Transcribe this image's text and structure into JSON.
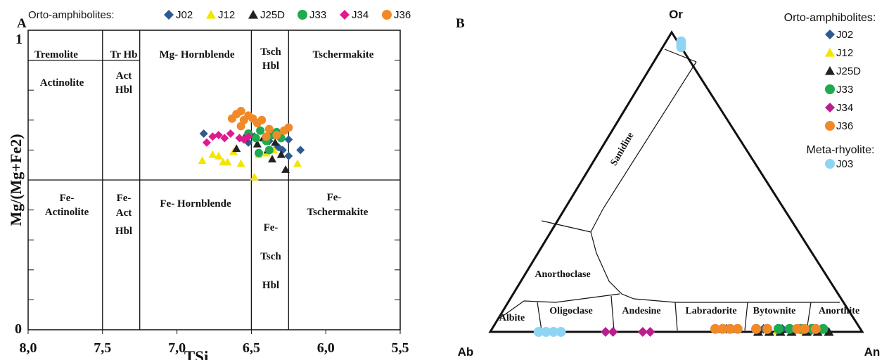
{
  "chart_data": [
    {
      "panel_label": "A",
      "type": "scatter",
      "legend_title": "Orto-amphibolites:",
      "legend_placement": "top",
      "xlabel": "TSi",
      "ylabel": "Mg/(Mg+Fe2)",
      "xlim": [
        8.0,
        5.5
      ],
      "ylim": [
        0,
        1
      ],
      "x_ticks": [
        "8,0",
        "7,5",
        "7,0",
        "6,5",
        "6,0",
        "5,5"
      ],
      "y_ticks": [
        "0",
        "1"
      ],
      "fields": [
        "Tremolite",
        "Tr Hb",
        "Actinolite",
        "Act",
        "Hbl",
        "Mg- Hornblende",
        "Tsch",
        "Hbl",
        "Tschermakite",
        "Fe-",
        "Actinolite",
        "Fe-",
        "Act",
        "Hbl",
        "Fe- Hornblende",
        "Fe-",
        "Tsch",
        "Hbl",
        "Fe-",
        "Tschermakite"
      ],
      "series": [
        {
          "name": "J02",
          "color": "#2f5a8f",
          "marker": "diamond",
          "points": [
            [
              6.82,
              0.655
            ],
            [
              6.52,
              0.625
            ],
            [
              6.48,
              0.645
            ],
            [
              6.38,
              0.63
            ],
            [
              6.32,
              0.61
            ],
            [
              6.29,
              0.6
            ],
            [
              6.25,
              0.58
            ],
            [
              6.25,
              0.635
            ],
            [
              6.17,
              0.6
            ]
          ]
        },
        {
          "name": "J12",
          "color": "#f2e600",
          "marker": "triangle",
          "points": [
            [
              6.83,
              0.565
            ],
            [
              6.76,
              0.585
            ],
            [
              6.72,
              0.58
            ],
            [
              6.69,
              0.56
            ],
            [
              6.66,
              0.56
            ],
            [
              6.62,
              0.595
            ],
            [
              6.57,
              0.555
            ],
            [
              6.48,
              0.51
            ],
            [
              6.45,
              0.585
            ],
            [
              6.4,
              0.59
            ],
            [
              6.35,
              0.6
            ],
            [
              6.19,
              0.555
            ]
          ]
        },
        {
          "name": "J25D",
          "color": "#222222",
          "marker": "triangle",
          "points": [
            [
              6.6,
              0.605
            ],
            [
              6.55,
              0.64
            ],
            [
              6.5,
              0.65
            ],
            [
              6.46,
              0.62
            ],
            [
              6.42,
              0.64
            ],
            [
              6.39,
              0.6
            ],
            [
              6.36,
              0.57
            ],
            [
              6.34,
              0.625
            ],
            [
              6.3,
              0.585
            ],
            [
              6.27,
              0.535
            ]
          ]
        },
        {
          "name": "J33",
          "color": "#1faa50",
          "marker": "circle",
          "points": [
            [
              6.52,
              0.655
            ],
            [
              6.47,
              0.64
            ],
            [
              6.44,
              0.665
            ],
            [
              6.4,
              0.63
            ],
            [
              6.36,
              0.65
            ],
            [
              6.33,
              0.66
            ],
            [
              6.3,
              0.64
            ],
            [
              6.45,
              0.59
            ],
            [
              6.38,
              0.6
            ]
          ]
        },
        {
          "name": "J34",
          "color": "#e0198c",
          "marker": "diamond",
          "points": [
            [
              6.8,
              0.625
            ],
            [
              6.76,
              0.645
            ],
            [
              6.72,
              0.65
            ],
            [
              6.68,
              0.64
            ],
            [
              6.64,
              0.655
            ],
            [
              6.58,
              0.64
            ],
            [
              6.55,
              0.635
            ],
            [
              6.52,
              0.645
            ]
          ]
        },
        {
          "name": "J36",
          "color": "#f08a28",
          "marker": "circle",
          "points": [
            [
              6.63,
              0.705
            ],
            [
              6.6,
              0.72
            ],
            [
              6.57,
              0.73
            ],
            [
              6.55,
              0.7
            ],
            [
              6.52,
              0.715
            ],
            [
              6.49,
              0.705
            ],
            [
              6.46,
              0.69
            ],
            [
              6.43,
              0.7
            ],
            [
              6.38,
              0.67
            ],
            [
              6.33,
              0.65
            ],
            [
              6.28,
              0.665
            ],
            [
              6.25,
              0.675
            ],
            [
              6.57,
              0.68
            ],
            [
              6.4,
              0.645
            ]
          ]
        }
      ]
    },
    {
      "panel_label": "B",
      "type": "scatter",
      "diagram": "ternary feldspar",
      "apices": [
        "Or",
        "Ab",
        "An"
      ],
      "legend_placement": "top-right",
      "legend_groups": [
        {
          "title": "Orto-amphibolites:",
          "series": [
            "J02",
            "J12",
            "J25D",
            "J33",
            "J34",
            "J36"
          ]
        },
        {
          "title": "Meta-rhyolite:",
          "series": [
            "J03"
          ]
        }
      ],
      "fields": [
        "Sanidine",
        "Anorthoclase",
        "Albite",
        "Oligoclase",
        "Andesine",
        "Labradorite",
        "Bytownite",
        "Anorthite"
      ],
      "series": [
        {
          "name": "J02",
          "color": "#2f5a8f",
          "marker": "diamond",
          "points": [
            {
              "An": 0.6,
              "Or": 0.01
            },
            {
              "An": 0.63,
              "Or": 0.01
            },
            {
              "An": 0.73,
              "Or": 0.01
            },
            {
              "An": 0.78,
              "Or": 0.01
            },
            {
              "An": 0.86,
              "Or": 0.005
            }
          ]
        },
        {
          "name": "J12",
          "color": "#f2e600",
          "marker": "triangle",
          "points": [
            {
              "An": 0.77,
              "Or": 0.005
            },
            {
              "An": 0.84,
              "Or": 0.005
            }
          ]
        },
        {
          "name": "J25D",
          "color": "#222222",
          "marker": "triangle",
          "points": [
            {
              "An": 0.72,
              "Or": 0.0
            },
            {
              "An": 0.75,
              "Or": 0.0
            },
            {
              "An": 0.78,
              "Or": 0.0
            },
            {
              "An": 0.81,
              "Or": 0.0
            },
            {
              "An": 0.85,
              "Or": 0.0
            },
            {
              "An": 0.88,
              "Or": 0.0
            },
            {
              "An": 0.91,
              "Or": 0.0
            }
          ]
        },
        {
          "name": "J33",
          "color": "#1faa50",
          "marker": "circle",
          "points": [
            {
              "An": 0.71,
              "Or": 0.01
            },
            {
              "An": 0.74,
              "Or": 0.01
            },
            {
              "An": 0.77,
              "Or": 0.01
            },
            {
              "An": 0.8,
              "Or": 0.01
            },
            {
              "An": 0.83,
              "Or": 0.01
            },
            {
              "An": 0.86,
              "Or": 0.01
            },
            {
              "An": 0.89,
              "Or": 0.01
            }
          ]
        },
        {
          "name": "J34",
          "color": "#b81e8c",
          "marker": "diamond",
          "points": [
            {
              "An": 0.31,
              "Or": 0.0
            },
            {
              "An": 0.33,
              "Or": 0.0
            },
            {
              "An": 0.41,
              "Or": 0.0
            },
            {
              "An": 0.43,
              "Or": 0.0
            }
          ]
        },
        {
          "name": "J36",
          "color": "#f08a28",
          "marker": "circle",
          "points": [
            {
              "An": 0.6,
              "Or": 0.01
            },
            {
              "An": 0.62,
              "Or": 0.01
            },
            {
              "An": 0.64,
              "Or": 0.01
            },
            {
              "An": 0.66,
              "Or": 0.01
            },
            {
              "An": 0.71,
              "Or": 0.01
            },
            {
              "An": 0.74,
              "Or": 0.01
            },
            {
              "An": 0.82,
              "Or": 0.01
            },
            {
              "An": 0.84,
              "Or": 0.01
            },
            {
              "An": 0.87,
              "Or": 0.01
            }
          ]
        },
        {
          "name": "J03",
          "color": "#8fd4f2",
          "marker": "circle",
          "points": [
            {
              "An": 0.04,
              "Or": 0.97
            },
            {
              "An": 0.045,
              "Or": 0.96
            },
            {
              "An": 0.05,
              "Or": 0.95
            },
            {
              "An": 0.13,
              "Or": 0.0
            },
            {
              "An": 0.15,
              "Or": 0.0
            },
            {
              "An": 0.17,
              "Or": 0.0
            },
            {
              "An": 0.19,
              "Or": 0.0
            }
          ]
        }
      ]
    }
  ]
}
